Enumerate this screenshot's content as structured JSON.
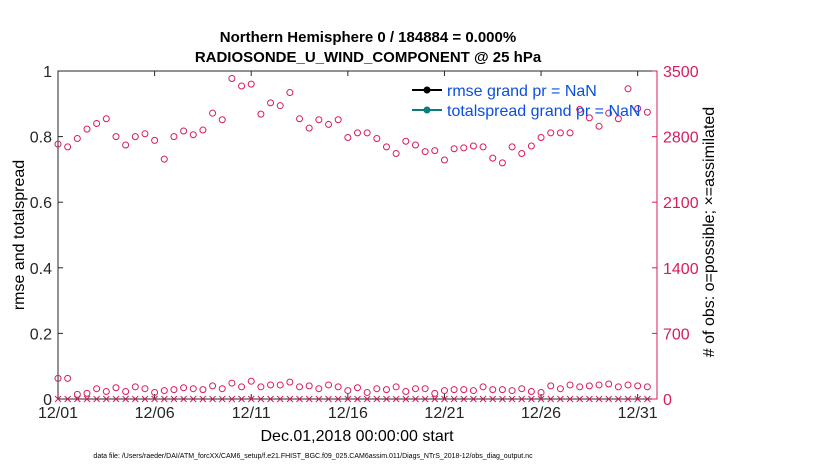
{
  "chart_data": {
    "type": "scatter",
    "title_line1": "Northern Hemisphere 0 / 184884 = 0.000%",
    "title_line2": "RADIOSONDE_U_WIND_COMPONENT @ 25 hPa",
    "xlabel": "Dec.01,2018 00:00:00 start",
    "ylabel_left": "rmse and totalspread",
    "ylabel_right": "# of obs: o=possible; ×=assimilated",
    "footer": "data file: /Users/raeder/DAI/ATM_forcXX/CAM6_setup/f.e21.FHIST_BGC.f09_025.CAM6assim.011/Diags_NTrS_2018-12/obs_diag_output.nc",
    "x_ticks": [
      "12/01",
      "12/06",
      "12/11",
      "12/16",
      "12/21",
      "12/26",
      "12/31"
    ],
    "x_tick_days": [
      1,
      6,
      11,
      16,
      21,
      26,
      31
    ],
    "xlim": [
      1,
      32
    ],
    "ylim_left": [
      0,
      1
    ],
    "y_ticks_left": [
      "0",
      "0.2",
      "0.4",
      "0.6",
      "0.8",
      "1"
    ],
    "ylim_right": [
      0,
      3500
    ],
    "y_ticks_right": [
      "0",
      "700",
      "1400",
      "2100",
      "2800",
      "3500"
    ],
    "legend": [
      {
        "label": "rmse grand pr = NaN",
        "line_color": "#000000",
        "text_color": "#0a4fe0"
      },
      {
        "label": "totalspread grand pr = NaN",
        "line_color": "#0b7d7d",
        "text_color": "#0a4fe0"
      }
    ],
    "colors": {
      "obs": "#d81b60",
      "axis": "#262626"
    },
    "series": [
      {
        "name": "possible_upper",
        "marker": "circle",
        "x": [
          1.0,
          1.5,
          2.0,
          2.5,
          3.0,
          3.5,
          4.0,
          4.5,
          5.0,
          5.5,
          6.0,
          6.5,
          7.0,
          7.5,
          8.0,
          8.5,
          9.0,
          9.5,
          10.0,
          10.5,
          11.0,
          11.5,
          12.0,
          12.5,
          13.0,
          13.5,
          14.0,
          14.5,
          15.0,
          15.5,
          16.0,
          16.5,
          17.0,
          17.5,
          18.0,
          18.5,
          19.0,
          19.5,
          20.0,
          20.5,
          21.0,
          21.5,
          22.0,
          22.5,
          23.0,
          23.5,
          24.0,
          24.5,
          25.0,
          25.5,
          26.0,
          26.5,
          27.0,
          27.5,
          28.0,
          28.5,
          29.0,
          29.5,
          30.0,
          30.5,
          31.0,
          31.5
        ],
        "values": [
          2720,
          2690,
          2780,
          2880,
          2940,
          2990,
          2800,
          2710,
          2800,
          2830,
          2760,
          2560,
          2800,
          2860,
          2820,
          2870,
          3050,
          2980,
          3420,
          3340,
          3360,
          3040,
          3160,
          3130,
          3270,
          2990,
          2890,
          2980,
          2930,
          2980,
          2790,
          2840,
          2840,
          2780,
          2690,
          2620,
          2750,
          2710,
          2640,
          2650,
          2550,
          2670,
          2680,
          2700,
          2690,
          2570,
          2520,
          2690,
          2620,
          2700,
          2790,
          2840,
          2840,
          2840,
          3090,
          3000,
          2910,
          3050,
          2990,
          3310,
          3100,
          3060
        ]
      },
      {
        "name": "possible_lower",
        "marker": "circle",
        "x": [
          1.0,
          1.5,
          2.0,
          2.5,
          3.0,
          3.5,
          4.0,
          4.5,
          5.0,
          5.5,
          6.0,
          6.5,
          7.0,
          7.5,
          8.0,
          8.5,
          9.0,
          9.5,
          10.0,
          10.5,
          11.0,
          11.5,
          12.0,
          12.5,
          13.0,
          13.5,
          14.0,
          14.5,
          15.0,
          15.5,
          16.0,
          16.5,
          17.0,
          17.5,
          18.0,
          18.5,
          19.0,
          19.5,
          20.0,
          20.5,
          21.0,
          21.5,
          22.0,
          22.5,
          23.0,
          23.5,
          24.0,
          24.5,
          25.0,
          25.5,
          26.0,
          26.5,
          27.0,
          27.5,
          28.0,
          28.5,
          29.0,
          29.5,
          30.0,
          30.5,
          31.0,
          31.5
        ],
        "values": [
          220,
          220,
          50,
          60,
          110,
          80,
          120,
          80,
          130,
          110,
          70,
          90,
          100,
          120,
          110,
          100,
          140,
          110,
          170,
          130,
          190,
          130,
          150,
          150,
          180,
          130,
          140,
          110,
          150,
          130,
          90,
          120,
          70,
          110,
          100,
          130,
          80,
          110,
          110,
          60,
          90,
          100,
          100,
          90,
          130,
          100,
          100,
          90,
          110,
          80,
          70,
          140,
          110,
          150,
          130,
          140,
          150,
          160,
          130,
          150,
          140,
          130
        ]
      },
      {
        "name": "assimilated",
        "marker": "x",
        "x": [
          1.0,
          1.5,
          2.0,
          2.5,
          3.0,
          3.5,
          4.0,
          4.5,
          5.0,
          5.5,
          6.0,
          6.5,
          7.0,
          7.5,
          8.0,
          8.5,
          9.0,
          9.5,
          10.0,
          10.5,
          11.0,
          11.5,
          12.0,
          12.5,
          13.0,
          13.5,
          14.0,
          14.5,
          15.0,
          15.5,
          16.0,
          16.5,
          17.0,
          17.5,
          18.0,
          18.5,
          19.0,
          19.5,
          20.0,
          20.5,
          21.0,
          21.5,
          22.0,
          22.5,
          23.0,
          23.5,
          24.0,
          24.5,
          25.0,
          25.5,
          26.0,
          26.5,
          27.0,
          27.5,
          28.0,
          28.5,
          29.0,
          29.5,
          30.0,
          30.5,
          31.0,
          31.5
        ],
        "values": [
          0,
          0,
          0,
          0,
          0,
          0,
          0,
          0,
          0,
          0,
          0,
          0,
          0,
          0,
          0,
          0,
          0,
          0,
          0,
          0,
          0,
          0,
          0,
          0,
          0,
          0,
          0,
          0,
          0,
          0,
          0,
          0,
          0,
          0,
          0,
          0,
          0,
          0,
          0,
          0,
          0,
          0,
          0,
          0,
          0,
          0,
          0,
          0,
          0,
          0,
          0,
          0,
          0,
          0,
          0,
          0,
          0,
          0,
          0,
          0,
          0,
          0
        ]
      }
    ]
  }
}
